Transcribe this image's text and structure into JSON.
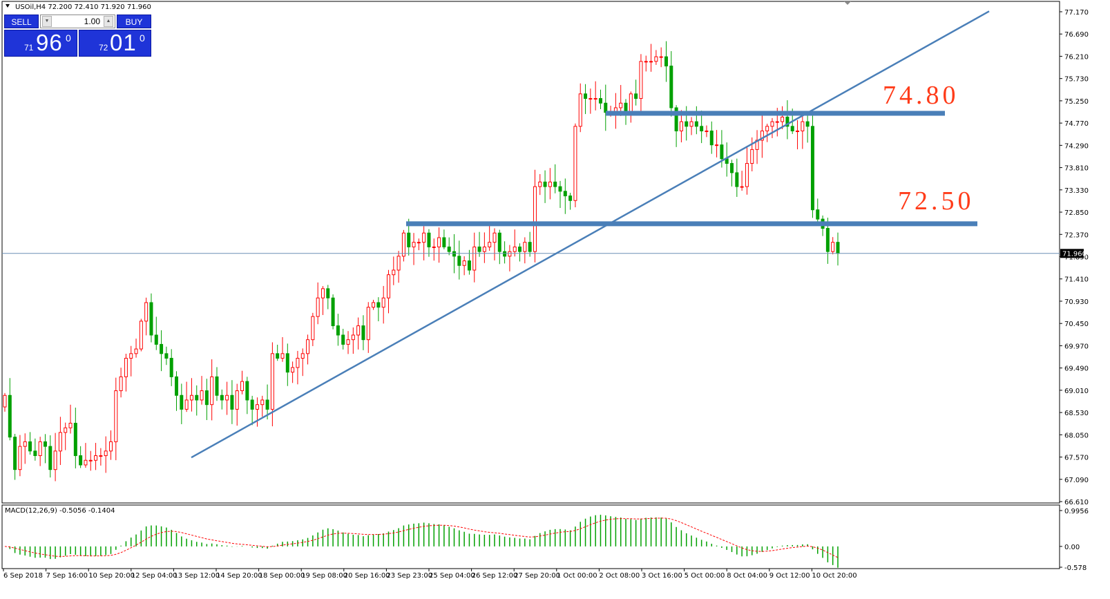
{
  "header": {
    "symbol_line": "USOil,H4  72.200 72.410 71.920 71.960"
  },
  "indicator": {
    "label": "MACD(12,26,9) -0.5056 -0.1404"
  },
  "trade_panel": {
    "sell_label": "SELL",
    "buy_label": "BUY",
    "lot_value": "1.00",
    "sell_price_small": "71",
    "sell_price_big": "96",
    "sell_price_sup": "0",
    "buy_price_small": "72",
    "buy_price_big": "01",
    "buy_price_sup": "0"
  },
  "current_price_label": "71.960",
  "colors": {
    "up": "#ff0000",
    "down": "#00a000",
    "annotation": "#ff3c1a",
    "line_tool": "#4a7fb8",
    "price_box": "#1f34d8",
    "macd_signal": "#ff0000"
  },
  "chart_data": [
    {
      "type": "candlestick",
      "ylim": [
        66.61,
        77.17
      ],
      "y_ticks": [
        "77.170",
        "76.690",
        "76.210",
        "75.730",
        "75.250",
        "74.770",
        "74.290",
        "73.810",
        "73.330",
        "72.850",
        "72.370",
        "71.890",
        "71.410",
        "70.930",
        "70.450",
        "69.970",
        "69.490",
        "69.010",
        "68.530",
        "68.050",
        "67.570",
        "67.090",
        "66.610"
      ],
      "x_labels": [
        "6 Sep 2018",
        "7 Sep 16:00",
        "10 Sep 20:00",
        "12 Sep 04:00",
        "13 Sep 12:00",
        "14 Sep 20:00",
        "18 Sep 00:00",
        "19 Sep 08:00",
        "20 Sep 16:00",
        "23 Sep 23:00",
        "25 Sep 04:00",
        "26 Sep 12:00",
        "27 Sep 20:00",
        "1 Oct 00:00",
        "2 Oct 08:00",
        "3 Oct 16:00",
        "5 Oct 00:00",
        "8 Oct 04:00",
        "9 Oct 12:00",
        "10 Oct 20:00"
      ],
      "current_price": 71.96,
      "horizontal_levels": [
        {
          "label": "74.80",
          "price": 74.98
        },
        {
          "label": "72.50",
          "price": 72.6
        }
      ],
      "trendline": {
        "from": {
          "date": "13 Sep 2018",
          "price": 67.56
        },
        "to": {
          "date": "11 Oct 2018",
          "price": 77.18
        }
      },
      "closes": [
        68.9,
        68.0,
        67.3,
        67.8,
        67.9,
        67.7,
        67.6,
        67.9,
        67.8,
        67.3,
        67.7,
        68.1,
        68.2,
        68.3,
        67.6,
        67.4,
        67.5,
        67.5,
        67.6,
        67.6,
        67.7,
        67.9,
        69.0,
        69.3,
        69.7,
        69.8,
        69.9,
        70.5,
        70.9,
        70.2,
        70.0,
        69.8,
        69.7,
        69.3,
        68.9,
        68.6,
        68.8,
        68.9,
        68.8,
        69.0,
        68.7,
        69.3,
        68.9,
        68.8,
        68.9,
        68.6,
        69.0,
        69.2,
        68.8,
        68.6,
        68.7,
        68.8,
        68.6,
        69.8,
        69.7,
        69.8,
        69.4,
        69.5,
        69.7,
        69.8,
        70.1,
        70.6,
        71.0,
        71.2,
        71.0,
        70.4,
        70.2,
        70.0,
        70.1,
        70.2,
        70.4,
        70.1,
        70.8,
        70.9,
        70.8,
        71.0,
        71.5,
        71.6,
        71.9,
        72.4,
        72.1,
        72.2,
        72.2,
        72.4,
        72.1,
        72.1,
        72.3,
        72.1,
        72.0,
        71.9,
        71.7,
        71.8,
        71.6,
        72.1,
        72.0,
        72.1,
        72.2,
        72.4,
        72.0,
        71.9,
        72.0,
        72.1,
        72.0,
        72.2,
        72.0,
        73.4,
        73.5,
        73.4,
        73.5,
        73.4,
        73.3,
        73.2,
        73.1,
        74.7,
        75.4,
        75.3,
        75.3,
        75.3,
        75.2,
        75.0,
        75.0,
        75.1,
        75.2,
        75.0,
        75.4,
        75.3,
        76.1,
        76.1,
        76.1,
        76.2,
        76.2,
        76.0,
        75.1,
        74.6,
        74.8,
        74.7,
        74.8,
        74.7,
        74.6,
        74.6,
        74.3,
        74.3,
        74.0,
        73.9,
        73.7,
        73.4,
        73.4,
        73.9,
        74.2,
        74.4,
        74.6,
        74.7,
        74.8,
        74.8,
        74.9,
        74.7,
        74.6,
        74.6,
        74.8,
        74.7,
        72.9,
        72.7,
        72.5,
        72.0,
        72.2,
        71.96
      ]
    },
    {
      "type": "bar",
      "title": "MACD(12,26,9) -0.5056 -0.1404",
      "ylim": [
        -0.578,
        0.9956
      ],
      "y_ticks": [
        "0.9956",
        "0.00",
        "-0.578"
      ],
      "main_value": -0.5056,
      "signal_value": -0.1404
    }
  ]
}
